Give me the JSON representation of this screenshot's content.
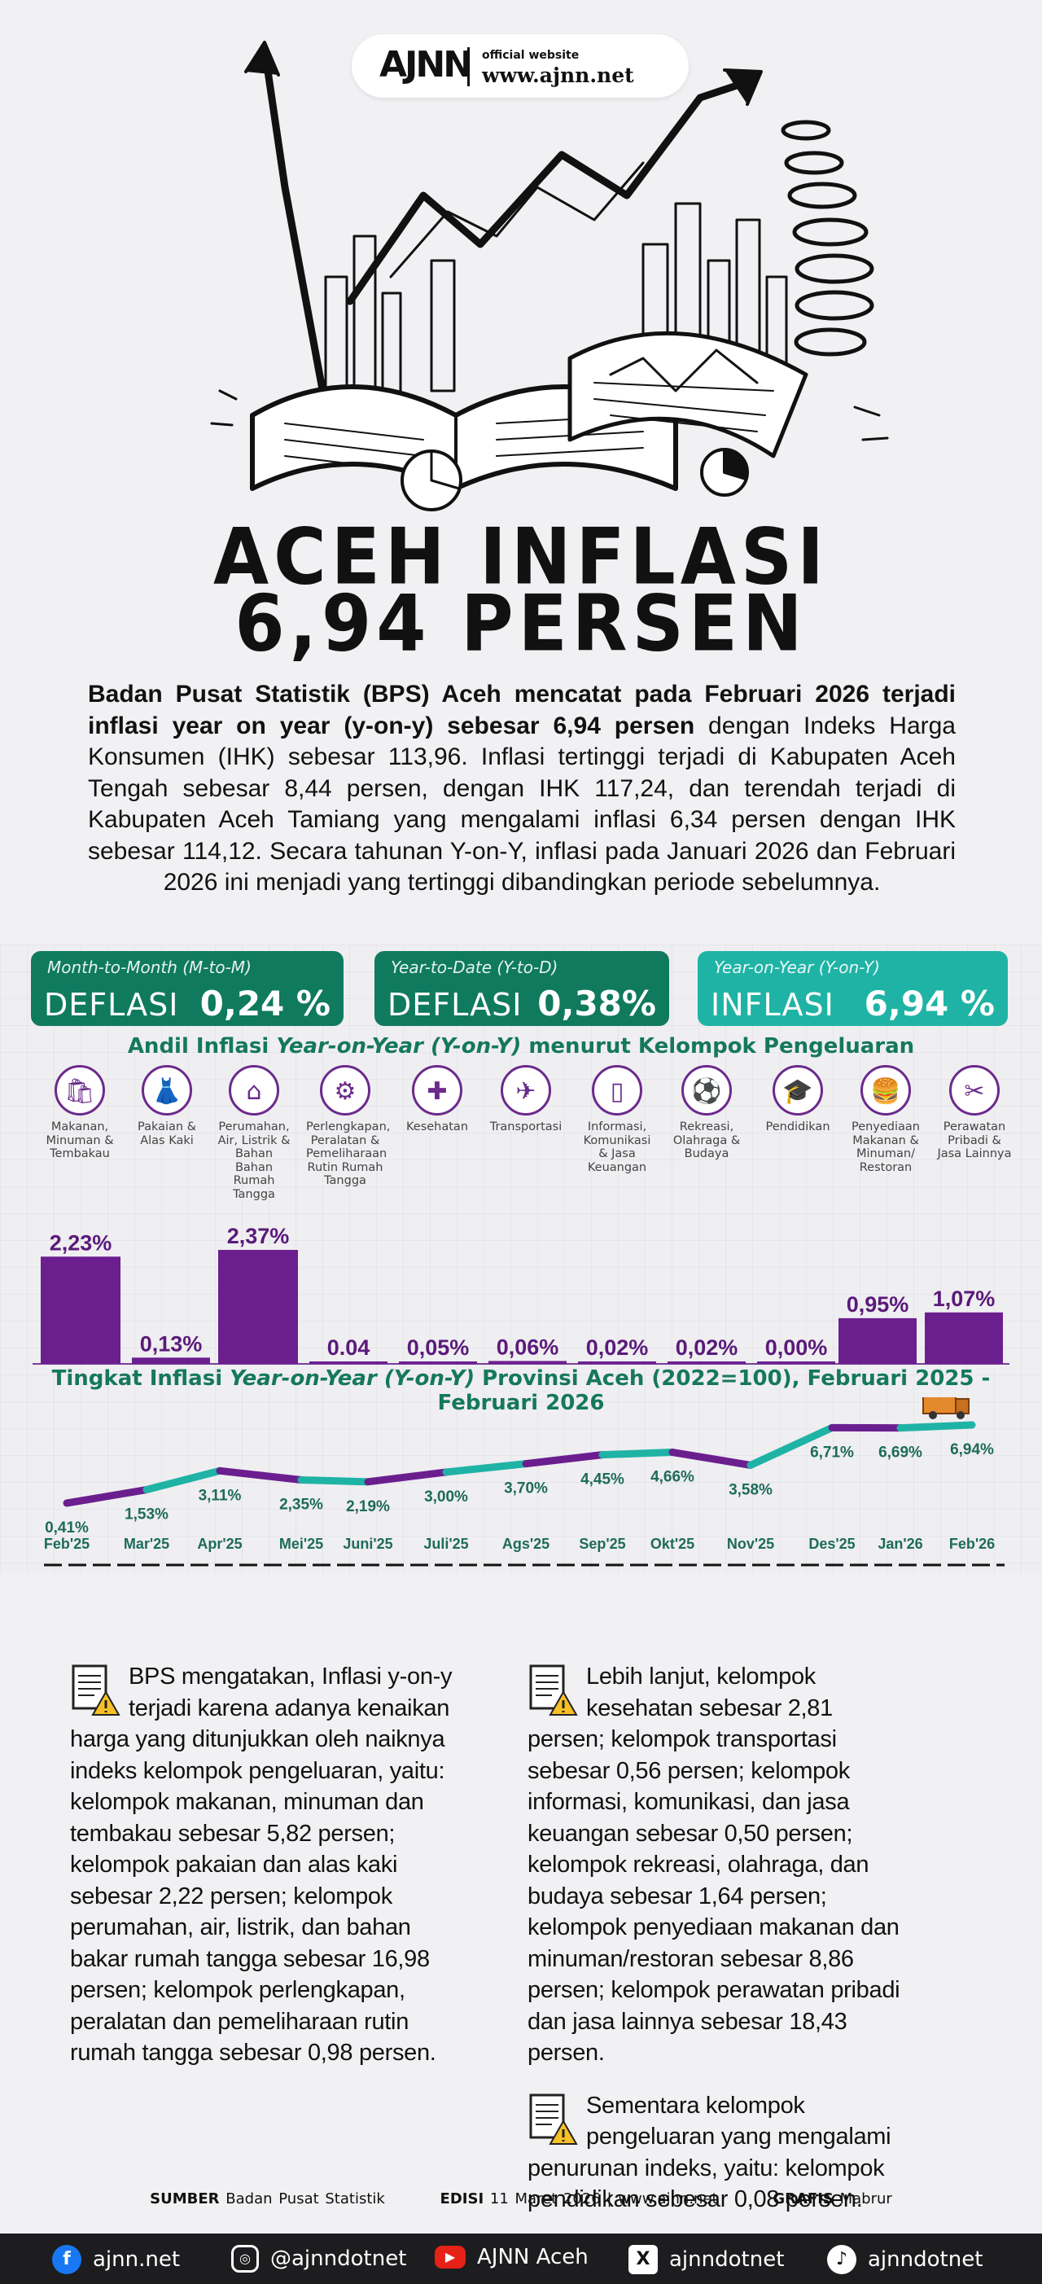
{
  "header": {
    "logo_text": "AJNN",
    "logo_tagline": "official website",
    "logo_url": "www.ajnn.net"
  },
  "title": {
    "line1": "ACEH INFLASI",
    "line2": "6,94 PERSEN"
  },
  "intro": {
    "bold": "Badan Pusat Statistik (BPS) Aceh mencatat pada Februari 2026 terjadi inflasi year on year (y-on-y) sebesar 6,94 persen",
    "rest": " dengan Indeks Harga Konsumen (IHK) sebesar 113,96. Inflasi tertinggi terjadi di Kabupaten Aceh Tengah sebesar 8,44 persen, dengan IHK 117,24, dan terendah terjadi di Kabupaten Aceh Tamiang yang mengalami inflasi 6,34 persen dengan IHK sebesar 114,12. Secara tahunan Y-on-Y, inflasi pada Januari 2026 dan Februari 2026 ini menjadi yang tertinggi dibandingkan periode sebelumnya."
  },
  "kpis": {
    "mtm": {
      "label": "Month-to-Month (M-to-M)",
      "kind": "DEFLASI",
      "value": "0,24 %"
    },
    "ytd": {
      "label": "Year-to-Date (Y-to-D)",
      "kind": "DEFLASI",
      "value": "0,38%"
    },
    "yoy": {
      "label": "Year-on-Year (Y-on-Y)",
      "kind": "INFLASI",
      "value": "6,94 %"
    }
  },
  "colors": {
    "purple": "#6b1f8f",
    "teal": "#1fb3a5",
    "green": "#0f7a5e"
  },
  "chart_data": [
    {
      "type": "bar",
      "title_pre": "Andil Inflasi ",
      "title_italic": "Year-on-Year (Y-on-Y)",
      "title_post": " menurut Kelompok Pengeluaran",
      "categories": [
        {
          "label": "Makanan, Minuman & Tembakau",
          "icon": "shopping-bag-icon",
          "glyph": "🛍"
        },
        {
          "label": "Pakaian & Alas Kaki",
          "icon": "dress-icon",
          "glyph": "👗"
        },
        {
          "label": "Perumahan, Air, Listrik & Bahan Bahan Rumah Tangga",
          "icon": "house-icon",
          "glyph": "⌂"
        },
        {
          "label": "Perlengkapan, Peralatan & Pemeliharaan Rutin Rumah Tangga",
          "icon": "appliance-icon",
          "glyph": "⚙"
        },
        {
          "label": "Kesehatan",
          "icon": "first-aid-icon",
          "glyph": "✚"
        },
        {
          "label": "Transportasi",
          "icon": "airplane-icon",
          "glyph": "✈"
        },
        {
          "label": "Informasi, Komunikasi & Jasa Keuangan",
          "icon": "phone-icon",
          "glyph": "▯"
        },
        {
          "label": "Rekreasi, Olahraga & Budaya",
          "icon": "soccer-player-icon",
          "glyph": "⚽"
        },
        {
          "label": "Pendidikan",
          "icon": "graduation-cap-icon",
          "glyph": "🎓"
        },
        {
          "label": "Penyediaan Makanan & Minuman/ Restoran",
          "icon": "fast-food-icon",
          "glyph": "🍔"
        },
        {
          "label": "Perawatan Pribadi & Jasa Lainnya",
          "icon": "tools-icon",
          "glyph": "✂"
        }
      ],
      "values": [
        2.23,
        0.13,
        2.37,
        0.04,
        0.05,
        0.06,
        0.02,
        0.02,
        0.0,
        0.95,
        1.07
      ],
      "value_labels": [
        "2,23%",
        "0,13%",
        "2,37%",
        "0.04",
        "0,05%",
        "0,06%",
        "0,02%",
        "0,02%",
        "0,00%",
        "0,95%",
        "1,07%"
      ],
      "unit": "%"
    },
    {
      "type": "line",
      "title_pre": "Tingkat Inflasi ",
      "title_italic": "Year-on-Year (Y-on-Y)",
      "title_post": " Provinsi Aceh (2022=100), Februari 2025 - Februari 2026",
      "x": [
        "Feb'25",
        "Mar'25",
        "Apr'25",
        "Mei'25",
        "Juni'25",
        "Juli'25",
        "Ags'25",
        "Sep'25",
        "Okt'25",
        "Nov'25",
        "Des'25",
        "Jan'26",
        "Feb'26"
      ],
      "values": [
        0.41,
        1.53,
        3.11,
        2.35,
        2.19,
        3.0,
        3.7,
        4.45,
        4.66,
        3.58,
        6.71,
        6.69,
        6.94
      ],
      "value_labels": [
        "0,41%",
        "1,53%",
        "3,11%",
        "2,35%",
        "2,19%",
        "3,00%",
        "3,70%",
        "4,45%",
        "4,66%",
        "3,58%",
        "6,71%",
        "6,69%",
        "6,94%"
      ],
      "unit": "%"
    }
  ],
  "body": {
    "left_p1": "BPS mengatakan, Inflasi y-on-y terjadi karena adanya kenaikan harga yang ditunjukkan oleh naiknya indeks kelompok pengeluaran, yaitu: kelompok makanan, minuman dan tembakau sebesar 5,82 persen; kelompok pakaian dan alas kaki sebesar 2,22 persen; kelompok perumahan, air, listrik, dan bahan bakar rumah tangga sebesar 16,98 persen; kelompok perlengkapan, peralatan dan pemeliharaan rutin rumah tangga sebesar 0,98 persen.",
    "right_p1": "Lebih lanjut, kelompok kesehatan sebesar 2,81 persen; kelompok transportasi sebesar 0,56 persen; kelompok informasi, komunikasi, dan jasa keuangan sebesar 0,50 persen; kelompok rekreasi, olahraga, dan budaya sebesar 1,64 persen; kelompok penyediaan makanan dan minuman/restoran sebesar 8,86 persen; kelompok perawatan pribadi dan jasa lainnya sebesar 18,43 persen.",
    "right_p2": "Sementara kelompok pengeluaran yang mengalami penurunan indeks, yaitu: kelompok pendidikan sebesar 0,08 persen."
  },
  "credits": {
    "source_label": "SUMBER",
    "source": "Badan Pusat Statistik",
    "edition_label": "EDISI",
    "edition": "11 Maret 2026 | www.ajnn.net",
    "graphic_label": "GRAFIS",
    "graphic": "Mabrur"
  },
  "footer": {
    "website": "ajnn.net",
    "instagram": "@ajnndotnet",
    "youtube": "AJNN Aceh",
    "x": "ajnndotnet",
    "tiktok": "ajnndotnet"
  }
}
